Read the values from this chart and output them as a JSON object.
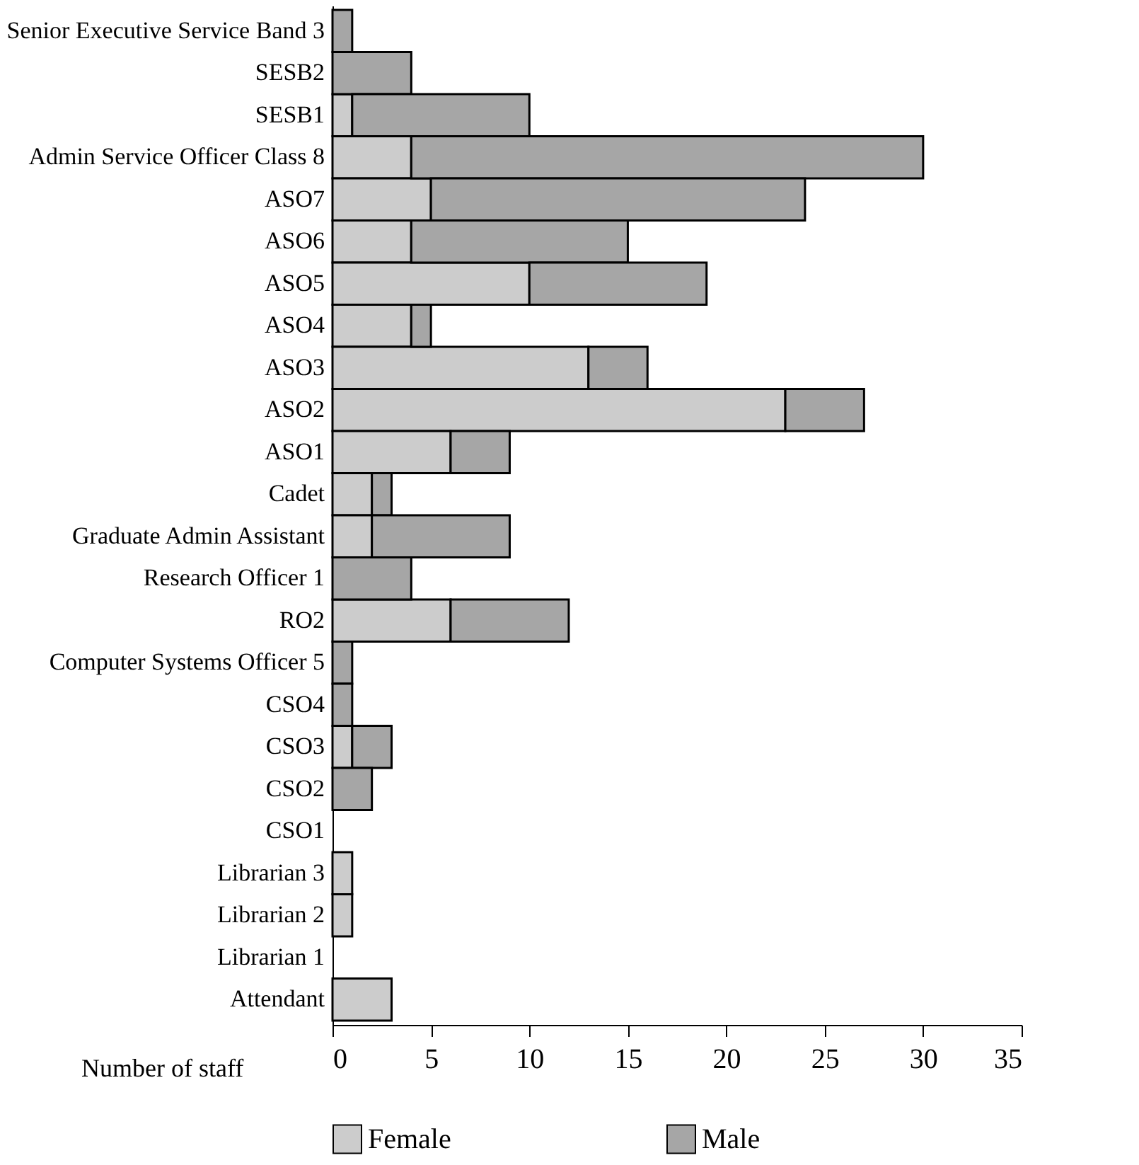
{
  "chart_data": {
    "type": "bar",
    "orientation": "horizontal",
    "stacked": true,
    "xlabel": "Number of staff",
    "categories": [
      "Senior Executive Service Band 3",
      "SESB2",
      "SESB1",
      "Admin Service Officer Class 8",
      "ASO7",
      "ASO6",
      "ASO5",
      "ASO4",
      "ASO3",
      "ASO2",
      "ASO1",
      "Cadet",
      "Graduate Admin Assistant",
      "Research Officer 1",
      "RO2",
      "Computer Systems Officer 5",
      "CSO4",
      "CSO3",
      "CSO2",
      "CSO1",
      "Librarian 3",
      "Librarian 2",
      "Librarian 1",
      "Attendant"
    ],
    "series": [
      {
        "name": "Female",
        "color": "#cccccc",
        "values": [
          0,
          0,
          1,
          4,
          5,
          4,
          10,
          4,
          13,
          23,
          6,
          2,
          2,
          0,
          6,
          0,
          0,
          1,
          0,
          0,
          1,
          1,
          0,
          3
        ]
      },
      {
        "name": "Male",
        "color": "#a6a6a6",
        "values": [
          1,
          4,
          9,
          26,
          19,
          11,
          9,
          1,
          3,
          4,
          3,
          1,
          7,
          4,
          6,
          1,
          1,
          2,
          2,
          0,
          0,
          0,
          0,
          0
        ]
      }
    ],
    "xlim": [
      0,
      35
    ],
    "xticks": [
      0,
      5,
      10,
      15,
      20,
      25,
      30,
      35
    ],
    "grid": false,
    "legend": "bottom"
  }
}
